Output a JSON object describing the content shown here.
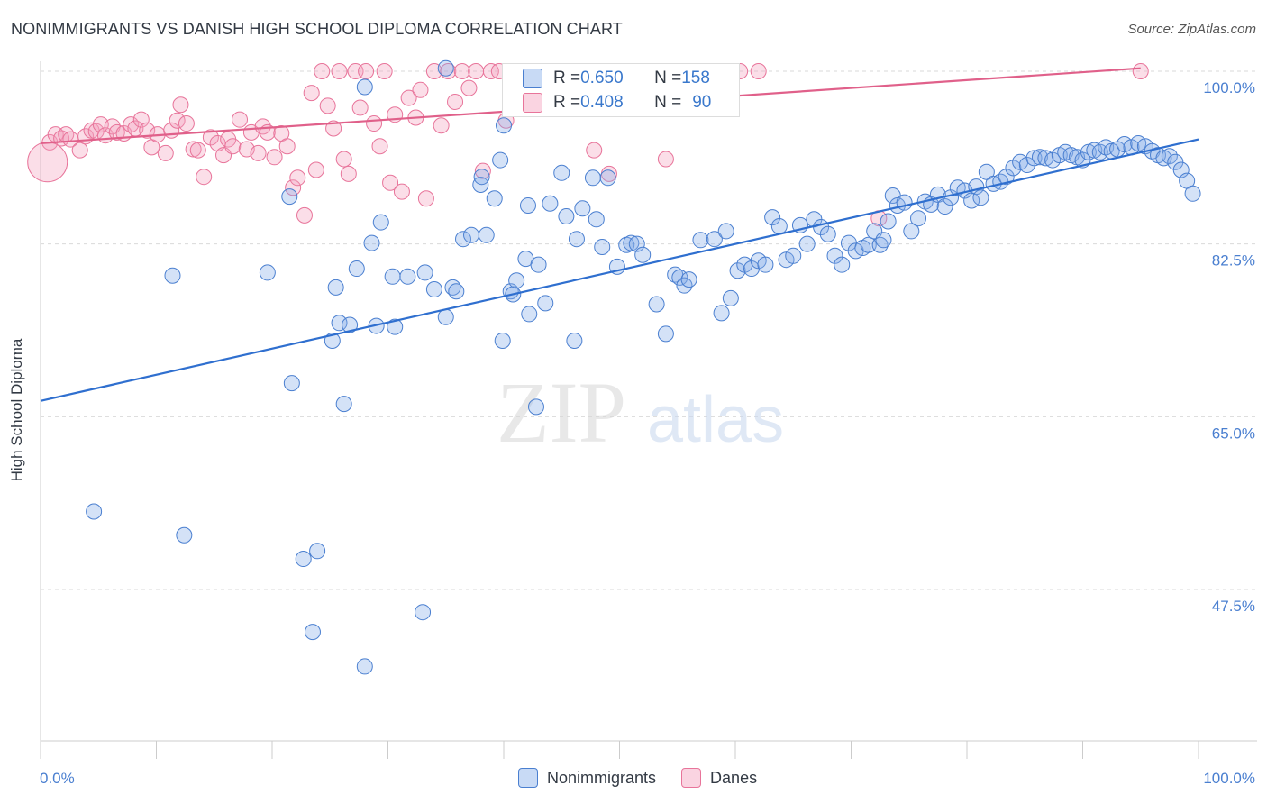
{
  "title": "NONIMMIGRANTS VS DANISH HIGH SCHOOL DIPLOMA CORRELATION CHART",
  "source": "Source: ZipAtlas.com",
  "watermark": {
    "zip": "ZIP",
    "atlas": "atlas"
  },
  "colors": {
    "blue": "#4a7fd0",
    "blue_fill": "rgba(132,172,232,0.35)",
    "blue_line": "#2f6fcf",
    "pink": "#e8749a",
    "pink_fill": "rgba(244,160,188,0.35)",
    "pink_line": "#e0608a",
    "grid": "#d9d9d9"
  },
  "legend_stats": {
    "row1": {
      "r_label": "R = ",
      "r_value": "0.650",
      "n_label": "N = ",
      "n_value": "158"
    },
    "row2": {
      "r_label": "R = ",
      "r_value": "0.408",
      "n_label": "N = ",
      "n_value": "90"
    }
  },
  "chart_data": {
    "type": "scatter",
    "title": "NONIMMIGRANTS VS DANISH HIGH SCHOOL DIPLOMA CORRELATION CHART",
    "xlabel": "",
    "ylabel": "High School Diploma",
    "x_tick_labels": [
      "0.0%",
      "100.0%"
    ],
    "y_tick_labels": [
      "100.0%",
      "82.5%",
      "65.0%",
      "47.5%"
    ],
    "y_ticks": [
      100.0,
      82.5,
      65.0,
      47.5
    ],
    "xlim": [
      0,
      100
    ],
    "ylim": [
      35.5,
      102.5
    ],
    "grid": true,
    "legend_position": "bottom",
    "series": [
      {
        "name": "Nonimmigrants",
        "color": "#4a7fd0",
        "r": 0.65,
        "n": 158,
        "trend": {
          "x": [
            0,
            100
          ],
          "y": [
            66.6,
            93.1
          ]
        },
        "points": [
          [
            4.6,
            55.4
          ],
          [
            11.4,
            79.3
          ],
          [
            12.4,
            53.0
          ],
          [
            19.6,
            79.6
          ],
          [
            21.5,
            87.3
          ],
          [
            21.7,
            68.4
          ],
          [
            22.7,
            50.6
          ],
          [
            23.5,
            43.2
          ],
          [
            23.9,
            51.4
          ],
          [
            25.2,
            72.7
          ],
          [
            25.5,
            78.1
          ],
          [
            25.8,
            74.5
          ],
          [
            26.2,
            66.3
          ],
          [
            26.7,
            74.3
          ],
          [
            27.3,
            80.0
          ],
          [
            28.0,
            98.4
          ],
          [
            28.0,
            39.7
          ],
          [
            28.6,
            82.6
          ],
          [
            29.0,
            74.2
          ],
          [
            29.4,
            84.7
          ],
          [
            30.4,
            79.2
          ],
          [
            30.6,
            74.1
          ],
          [
            31.7,
            79.2
          ],
          [
            33.0,
            45.2
          ],
          [
            33.2,
            79.6
          ],
          [
            34.0,
            77.9
          ],
          [
            35.0,
            100.3
          ],
          [
            35.0,
            75.1
          ],
          [
            35.6,
            78.1
          ],
          [
            35.9,
            77.7
          ],
          [
            36.5,
            83.0
          ],
          [
            37.2,
            83.4
          ],
          [
            38.0,
            88.5
          ],
          [
            38.1,
            89.3
          ],
          [
            38.5,
            83.4
          ],
          [
            39.2,
            87.1
          ],
          [
            39.7,
            91.0
          ],
          [
            39.9,
            72.7
          ],
          [
            40.0,
            94.5
          ],
          [
            40.6,
            77.7
          ],
          [
            40.8,
            77.4
          ],
          [
            41.1,
            78.8
          ],
          [
            41.9,
            81.0
          ],
          [
            42.1,
            86.4
          ],
          [
            42.2,
            75.4
          ],
          [
            42.8,
            66.0
          ],
          [
            43.0,
            80.4
          ],
          [
            43.6,
            76.5
          ],
          [
            44.0,
            86.6
          ],
          [
            45.0,
            89.7
          ],
          [
            45.4,
            85.3
          ],
          [
            46.1,
            72.7
          ],
          [
            46.3,
            83.0
          ],
          [
            46.8,
            86.1
          ],
          [
            47.7,
            89.2
          ],
          [
            48.0,
            85.0
          ],
          [
            48.5,
            82.2
          ],
          [
            49.0,
            89.2
          ],
          [
            49.8,
            80.2
          ],
          [
            50.6,
            82.4
          ],
          [
            51.0,
            82.6
          ],
          [
            51.5,
            82.5
          ],
          [
            52.0,
            81.4
          ],
          [
            53.2,
            76.4
          ],
          [
            54.0,
            73.4
          ],
          [
            54.8,
            79.4
          ],
          [
            55.2,
            79.1
          ],
          [
            55.6,
            78.3
          ],
          [
            56.0,
            78.9
          ],
          [
            57.0,
            82.9
          ],
          [
            58.2,
            83.0
          ],
          [
            58.8,
            75.5
          ],
          [
            59.2,
            83.8
          ],
          [
            59.6,
            77.0
          ],
          [
            60.2,
            79.8
          ],
          [
            60.8,
            80.4
          ],
          [
            61.4,
            80.0
          ],
          [
            62.0,
            80.8
          ],
          [
            62.6,
            80.4
          ],
          [
            63.2,
            85.2
          ],
          [
            63.8,
            84.3
          ],
          [
            64.4,
            80.9
          ],
          [
            65.0,
            81.3
          ],
          [
            65.6,
            84.4
          ],
          [
            66.2,
            82.5
          ],
          [
            66.8,
            85.0
          ],
          [
            67.4,
            84.2
          ],
          [
            68.0,
            83.5
          ],
          [
            68.6,
            81.3
          ],
          [
            69.2,
            80.4
          ],
          [
            69.8,
            82.6
          ],
          [
            70.4,
            81.8
          ],
          [
            71.0,
            82.1
          ],
          [
            71.5,
            82.4
          ],
          [
            72.0,
            83.8
          ],
          [
            72.5,
            82.4
          ],
          [
            72.8,
            82.9
          ],
          [
            73.2,
            84.8
          ],
          [
            73.6,
            87.4
          ],
          [
            74.0,
            86.4
          ],
          [
            74.6,
            86.7
          ],
          [
            75.2,
            83.8
          ],
          [
            75.8,
            85.1
          ],
          [
            76.4,
            86.8
          ],
          [
            76.9,
            86.5
          ],
          [
            77.5,
            87.5
          ],
          [
            78.1,
            86.3
          ],
          [
            78.6,
            87.2
          ],
          [
            79.2,
            88.2
          ],
          [
            79.8,
            87.9
          ],
          [
            80.4,
            86.9
          ],
          [
            80.8,
            88.3
          ],
          [
            81.2,
            87.2
          ],
          [
            81.7,
            89.8
          ],
          [
            82.3,
            88.6
          ],
          [
            82.9,
            88.8
          ],
          [
            83.4,
            89.3
          ],
          [
            84.0,
            90.2
          ],
          [
            84.6,
            90.8
          ],
          [
            85.2,
            90.5
          ],
          [
            85.8,
            91.2
          ],
          [
            86.3,
            91.3
          ],
          [
            86.8,
            91.2
          ],
          [
            87.4,
            91.0
          ],
          [
            88.0,
            91.5
          ],
          [
            88.5,
            91.8
          ],
          [
            89.0,
            91.5
          ],
          [
            89.5,
            91.3
          ],
          [
            90.0,
            91.0
          ],
          [
            90.5,
            91.8
          ],
          [
            91.0,
            92.0
          ],
          [
            91.5,
            91.8
          ],
          [
            92.0,
            92.3
          ],
          [
            92.5,
            91.9
          ],
          [
            93.0,
            92.1
          ],
          [
            93.6,
            92.6
          ],
          [
            94.2,
            92.3
          ],
          [
            94.8,
            92.7
          ],
          [
            95.4,
            92.4
          ],
          [
            96.0,
            91.9
          ],
          [
            96.5,
            91.5
          ],
          [
            97.0,
            91.2
          ],
          [
            97.5,
            91.4
          ],
          [
            98.0,
            90.8
          ],
          [
            98.5,
            90.0
          ],
          [
            99.0,
            88.9
          ],
          [
            99.5,
            87.6
          ]
        ]
      },
      {
        "name": "Danes",
        "color": "#e8749a",
        "r": 0.408,
        "n": 90,
        "trend": {
          "x": [
            0,
            95
          ],
          "y": [
            92.7,
            100.3
          ]
        },
        "points": [
          [
            0.8,
            92.8
          ],
          [
            1.3,
            93.6
          ],
          [
            1.8,
            93.2
          ],
          [
            2.2,
            93.6
          ],
          [
            2.6,
            93.1
          ],
          [
            3.4,
            92.0
          ],
          [
            3.9,
            93.4
          ],
          [
            4.4,
            94.0
          ],
          [
            4.8,
            93.9
          ],
          [
            5.2,
            94.6
          ],
          [
            5.6,
            93.5
          ],
          [
            6.2,
            94.4
          ],
          [
            6.6,
            93.8
          ],
          [
            7.2,
            93.7
          ],
          [
            7.8,
            94.6
          ],
          [
            8.2,
            94.2
          ],
          [
            8.7,
            95.1
          ],
          [
            9.2,
            94.0
          ],
          [
            9.6,
            92.3
          ],
          [
            10.1,
            93.6
          ],
          [
            10.8,
            91.7
          ],
          [
            11.3,
            94.0
          ],
          [
            11.8,
            95.0
          ],
          [
            12.1,
            96.6
          ],
          [
            12.6,
            94.7
          ],
          [
            13.2,
            92.1
          ],
          [
            13.6,
            92.0
          ],
          [
            14.1,
            89.3
          ],
          [
            14.7,
            93.3
          ],
          [
            15.3,
            92.7
          ],
          [
            15.8,
            91.5
          ],
          [
            16.2,
            93.1
          ],
          [
            16.6,
            92.4
          ],
          [
            17.2,
            95.1
          ],
          [
            17.8,
            92.1
          ],
          [
            18.2,
            93.8
          ],
          [
            18.8,
            91.7
          ],
          [
            19.2,
            94.4
          ],
          [
            19.6,
            93.8
          ],
          [
            20.2,
            91.3
          ],
          [
            20.8,
            93.7
          ],
          [
            21.3,
            92.4
          ],
          [
            21.8,
            88.2
          ],
          [
            22.2,
            89.2
          ],
          [
            22.8,
            85.4
          ],
          [
            23.4,
            97.8
          ],
          [
            23.8,
            90.0
          ],
          [
            24.3,
            100.0
          ],
          [
            24.8,
            96.5
          ],
          [
            25.3,
            94.2
          ],
          [
            25.8,
            100.0
          ],
          [
            26.2,
            91.1
          ],
          [
            26.6,
            89.6
          ],
          [
            27.2,
            100.0
          ],
          [
            27.6,
            96.3
          ],
          [
            28.1,
            100.0
          ],
          [
            28.8,
            94.7
          ],
          [
            29.3,
            92.4
          ],
          [
            29.7,
            100.0
          ],
          [
            30.2,
            88.7
          ],
          [
            30.6,
            95.6
          ],
          [
            31.2,
            87.8
          ],
          [
            31.8,
            97.3
          ],
          [
            32.4,
            95.3
          ],
          [
            32.8,
            98.1
          ],
          [
            33.3,
            87.1
          ],
          [
            34.0,
            100.0
          ],
          [
            34.6,
            94.5
          ],
          [
            35.2,
            100.0
          ],
          [
            35.8,
            96.9
          ],
          [
            36.4,
            100.0
          ],
          [
            37.0,
            98.3
          ],
          [
            37.6,
            100.0
          ],
          [
            38.2,
            89.9
          ],
          [
            38.9,
            100.0
          ],
          [
            39.6,
            100.0
          ],
          [
            40.2,
            95.0
          ],
          [
            41.4,
            100.0
          ],
          [
            42.8,
            100.0
          ],
          [
            47.5,
            100.0
          ],
          [
            47.8,
            92.0
          ],
          [
            49.1,
            89.6
          ],
          [
            51.2,
            100.0
          ],
          [
            52.4,
            100.0
          ],
          [
            54.0,
            91.1
          ],
          [
            58.2,
            100.0
          ],
          [
            60.4,
            100.0
          ],
          [
            62.0,
            100.0
          ],
          [
            72.4,
            85.1
          ],
          [
            95.0,
            100.0
          ]
        ]
      }
    ]
  },
  "axis": {
    "x_left_label": "0.0%",
    "x_right_label": "100.0%"
  }
}
